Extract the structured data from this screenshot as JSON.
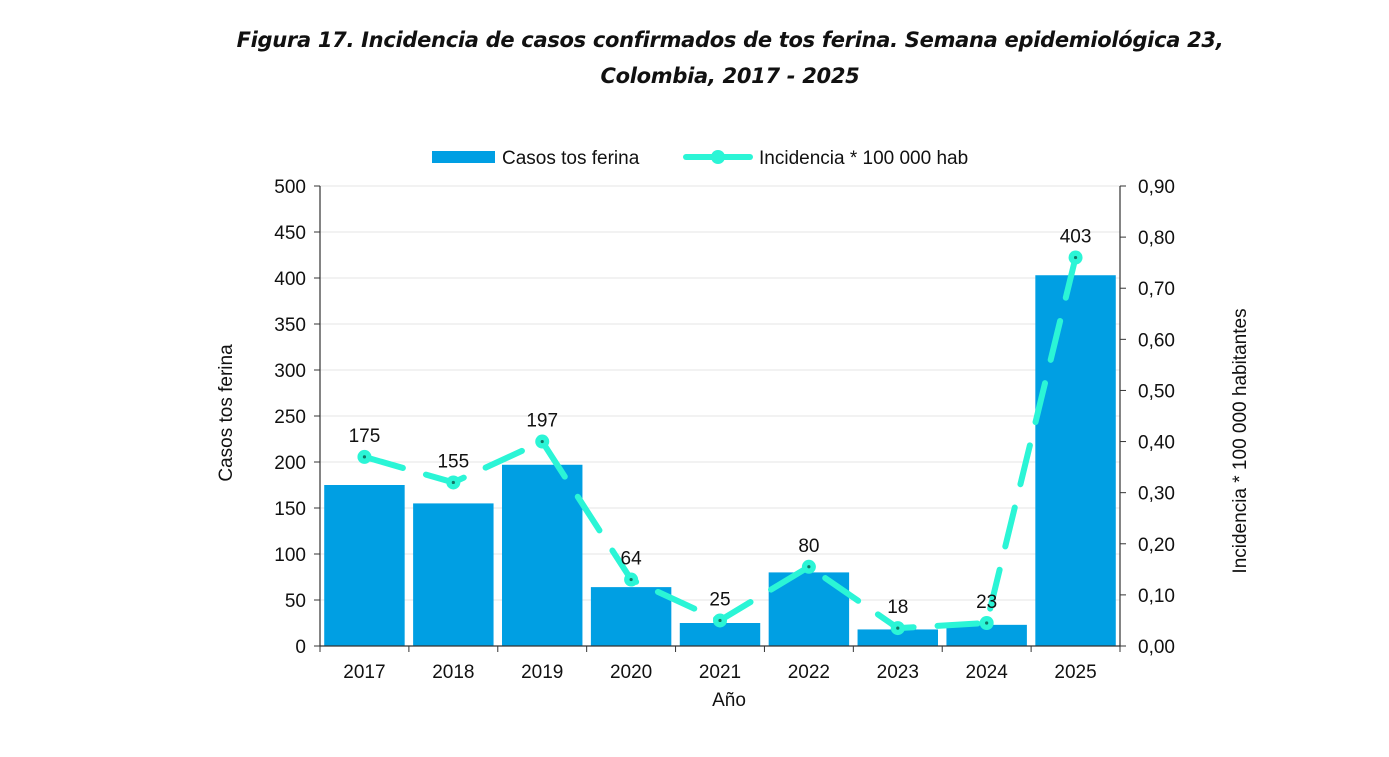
{
  "figure": {
    "title_line1": "Figura 17. Incidencia de casos confirmados de tos ferina. Semana epidemiológica 23,",
    "title_line2": "Colombia, 2017 - 2025"
  },
  "colors": {
    "bar": "#009FE3",
    "line": "#2BF5D6",
    "axis": "#333333",
    "grid": "#E6E6E6"
  },
  "chart_data": {
    "type": "bar",
    "categories": [
      "2017",
      "2018",
      "2019",
      "2020",
      "2021",
      "2022",
      "2023",
      "2024",
      "2025"
    ],
    "series": [
      {
        "name": "Casos tos ferina",
        "type": "bar",
        "axis": "left",
        "values": [
          175,
          155,
          197,
          64,
          25,
          80,
          18,
          23,
          403
        ]
      },
      {
        "name": "Incidencia * 100 000 hab",
        "type": "line",
        "axis": "right",
        "style": "dashed",
        "values": [
          0.37,
          0.32,
          0.4,
          0.13,
          0.05,
          0.155,
          0.035,
          0.045,
          0.76
        ]
      }
    ],
    "data_labels": [
      "175",
      "155",
      "197",
      "64",
      "25",
      "80",
      "18",
      "23",
      "403"
    ],
    "xlabel": "Año",
    "ylabel": "Casos tos ferina",
    "y2label": "Incidencia * 100 000 habitantes",
    "ylim": [
      0,
      500
    ],
    "y2lim": [
      0,
      0.9
    ],
    "yticks": [
      "0",
      "50",
      "100",
      "150",
      "200",
      "250",
      "300",
      "350",
      "400",
      "450",
      "500"
    ],
    "y2ticks": [
      "0,00",
      "0,10",
      "0,20",
      "0,30",
      "0,40",
      "0,50",
      "0,60",
      "0,70",
      "0,80",
      "0,90"
    ],
    "legend_position": "top",
    "grid": true
  }
}
